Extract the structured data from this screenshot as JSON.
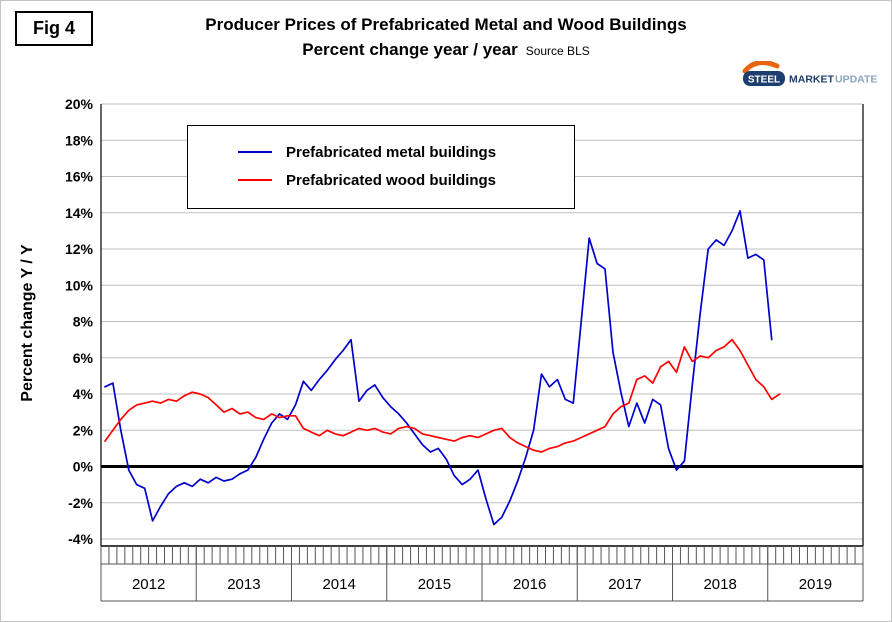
{
  "figure": {
    "fig_label": "Fig 4"
  },
  "logo": {
    "steel": "STEEL",
    "market": "MARKET",
    "update": "UPDATE",
    "steel_bg": "#1c3e6e",
    "market_color": "#1c3e6e",
    "update_color": "#8aa6c0",
    "swoosh_color": "#e8650f"
  },
  "chart_data": {
    "type": "line",
    "title": "Producer Prices of Prefabricated Metal and Wood Buildings",
    "subtitle": "Percent change year / year",
    "source_label": "Source BLS",
    "xlabel": "",
    "ylabel": "Percent change Y / Y",
    "ylim": [
      -4,
      20
    ],
    "ytick_step": 2,
    "ytick_labels": [
      "20%",
      "18%",
      "16%",
      "14%",
      "12%",
      "10%",
      "8%",
      "6%",
      "4%",
      "2%",
      "0%",
      "-2%",
      "-4%"
    ],
    "grid": true,
    "grid_color": "#bfbfbf",
    "zero_line_color": "#000000",
    "legend_position": "top-left",
    "x_years": [
      2012,
      2013,
      2014,
      2015,
      2016,
      2017,
      2018,
      2019
    ],
    "months": [
      "2012-01",
      "2012-02",
      "2012-03",
      "2012-04",
      "2012-05",
      "2012-06",
      "2012-07",
      "2012-08",
      "2012-09",
      "2012-10",
      "2012-11",
      "2012-12",
      "2013-01",
      "2013-02",
      "2013-03",
      "2013-04",
      "2013-05",
      "2013-06",
      "2013-07",
      "2013-08",
      "2013-09",
      "2013-10",
      "2013-11",
      "2013-12",
      "2014-01",
      "2014-02",
      "2014-03",
      "2014-04",
      "2014-05",
      "2014-06",
      "2014-07",
      "2014-08",
      "2014-09",
      "2014-10",
      "2014-11",
      "2014-12",
      "2015-01",
      "2015-02",
      "2015-03",
      "2015-04",
      "2015-05",
      "2015-06",
      "2015-07",
      "2015-08",
      "2015-09",
      "2015-10",
      "2015-11",
      "2015-12",
      "2016-01",
      "2016-02",
      "2016-03",
      "2016-04",
      "2016-05",
      "2016-06",
      "2016-07",
      "2016-08",
      "2016-09",
      "2016-10",
      "2016-11",
      "2016-12",
      "2017-01",
      "2017-02",
      "2017-03",
      "2017-04",
      "2017-05",
      "2017-06",
      "2017-07",
      "2017-08",
      "2017-09",
      "2017-10",
      "2017-11",
      "2017-12",
      "2018-01",
      "2018-02",
      "2018-03",
      "2018-04",
      "2018-05",
      "2018-06",
      "2018-07",
      "2018-08",
      "2018-09",
      "2018-10",
      "2018-11",
      "2018-12",
      "2019-01",
      "2019-02"
    ],
    "series": [
      {
        "name": "Prefabricated metal buildings",
        "color": "#0000cc",
        "values": [
          4.4,
          4.6,
          2.0,
          -0.2,
          -1.0,
          -1.2,
          -3.0,
          -2.2,
          -1.5,
          -1.1,
          -0.9,
          -1.1,
          -0.7,
          -0.9,
          -0.6,
          -0.8,
          -0.7,
          -0.4,
          -0.2,
          0.5,
          1.5,
          2.4,
          2.9,
          2.6,
          3.4,
          4.7,
          4.2,
          4.8,
          5.3,
          5.9,
          6.4,
          7.0,
          3.6,
          4.2,
          4.5,
          3.8,
          3.3,
          2.9,
          2.4,
          1.8,
          1.2,
          0.8,
          1.0,
          0.4,
          -0.5,
          -1.0,
          -0.7,
          -0.2,
          -1.8,
          -3.2,
          -2.8,
          -1.9,
          -0.8,
          0.5,
          2.0,
          5.1,
          4.4,
          4.8,
          3.7,
          3.5,
          8.0,
          12.6,
          11.2,
          10.9,
          6.3,
          4.1,
          2.2,
          3.5,
          2.4,
          3.7,
          3.4,
          1.0,
          -0.2,
          0.3,
          4.5,
          8.5,
          12.0,
          12.5,
          12.2,
          13.0,
          14.1,
          11.5,
          11.7,
          11.4,
          7.0,
          null
        ]
      },
      {
        "name": "Prefabricated wood buildings",
        "color": "#ff0000",
        "values": [
          1.4,
          2.0,
          2.6,
          3.1,
          3.4,
          3.5,
          3.6,
          3.5,
          3.7,
          3.6,
          3.9,
          4.1,
          4.0,
          3.8,
          3.4,
          3.0,
          3.2,
          2.9,
          3.0,
          2.7,
          2.6,
          2.9,
          2.7,
          2.8,
          2.8,
          2.1,
          1.9,
          1.7,
          2.0,
          1.8,
          1.7,
          1.9,
          2.1,
          2.0,
          2.1,
          1.9,
          1.8,
          2.1,
          2.2,
          2.1,
          1.8,
          1.7,
          1.6,
          1.5,
          1.4,
          1.6,
          1.7,
          1.6,
          1.8,
          2.0,
          2.1,
          1.6,
          1.3,
          1.1,
          0.9,
          0.8,
          1.0,
          1.1,
          1.3,
          1.4,
          1.6,
          1.8,
          2.0,
          2.2,
          2.9,
          3.3,
          3.5,
          4.8,
          5.0,
          4.6,
          5.5,
          5.8,
          5.2,
          6.6,
          5.8,
          6.1,
          6.0,
          6.4,
          6.6,
          7.0,
          6.4,
          5.6,
          4.8,
          4.4,
          3.7,
          4.0
        ]
      }
    ]
  }
}
